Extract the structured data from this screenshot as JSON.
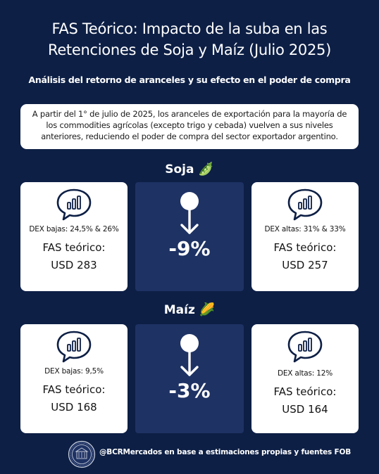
{
  "header": {
    "title_line1": "FAS Teórico: Impacto de la suba en las",
    "title_line2": "Retenciones de Soja y Maíz (Julio 2025)",
    "subtitle": "Análisis del retorno de aranceles y su efecto en el poder de compra"
  },
  "intro": {
    "line1": "A partir del 1° de julio de 2025, los aranceles de exportación para la  mayoría de",
    "line2": "los commodities agrícolas (excepto trigo y cebada) vuelven a  sus niveles",
    "line3": "anteriores, reduciendo el poder de compra del sector  exportador argentino."
  },
  "soja": {
    "label": "Soja",
    "emoji": "🫛",
    "left": {
      "dex": "DEX bajas:  24,5% & 26%",
      "fas": "FAS teórico:",
      "usd": "USD 283"
    },
    "change": "-9%",
    "right": {
      "dex": "DEX altas:  31% & 33%",
      "fas": "FAS teórico:",
      "usd": "USD 257"
    }
  },
  "maiz": {
    "label": "Maíz",
    "emoji": "🌽",
    "left": {
      "dex": "DEX bajas:  9,5%",
      "fas": "FAS teórico:",
      "usd": "USD 168"
    },
    "change": "-3%",
    "right": {
      "dex": "DEX altas:  12%",
      "fas": "FAS teórico:",
      "usd": "USD 164"
    }
  },
  "footer": {
    "credit": "@BCRMercados en base a estimaciones propias y fuentes FOB"
  },
  "colors": {
    "background": "#0d1f45",
    "mid_panel": "#1e3264",
    "icon_stroke": "#0d1f45"
  }
}
